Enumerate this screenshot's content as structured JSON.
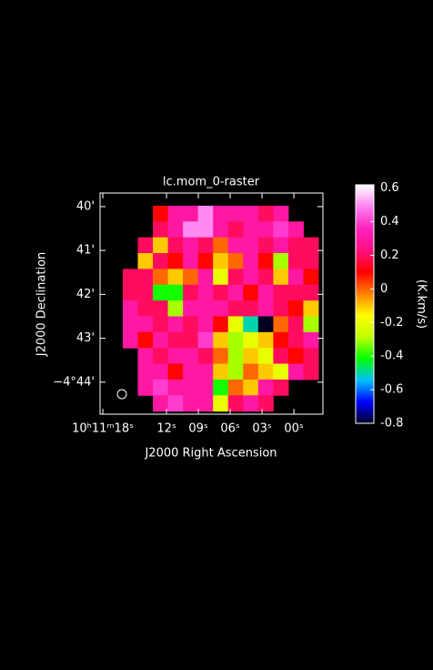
{
  "chart_data": {
    "type": "raster",
    "title": "lc.mom_0-raster",
    "xlabel": "J2000 Right Ascension",
    "ylabel": "J2000 Declination",
    "colorbar_label": "(K.km/s)",
    "xlim": [
      18.26,
      -2.74
    ],
    "ylim": [
      39.69,
      44.73
    ],
    "xticks": [
      {
        "value": 18,
        "label": "10ʰ11ᵐ18ˢ"
      },
      {
        "value": 12,
        "label": "12ˢ"
      },
      {
        "value": 9,
        "label": "09ˢ"
      },
      {
        "value": 6,
        "label": "06ˢ"
      },
      {
        "value": 3,
        "label": "03ˢ"
      },
      {
        "value": 0,
        "label": "00ˢ"
      }
    ],
    "yticks": [
      {
        "value": 40,
        "label": "40'"
      },
      {
        "value": 41,
        "label": "41'"
      },
      {
        "value": 42,
        "label": "42'"
      },
      {
        "value": 43,
        "label": "43'"
      },
      {
        "value": 44,
        "label": "−4°44'"
      }
    ],
    "extent": [
      16.12,
      -2.31,
      39.98,
      44.66
    ],
    "clim": [
      -0.8,
      0.62
    ],
    "cticks": [
      0.6,
      0.4,
      0.2,
      0,
      -0.2,
      -0.4,
      -0.6,
      -0.8
    ],
    "colormap": [
      "#000020",
      "#0000ff",
      "#00c0ff",
      "#00ff00",
      "#c0ff00",
      "#ffff00",
      "#ff8000",
      "#ff0000",
      "#ff1080",
      "#ff20c0",
      "#ff80f0",
      "#ffffff"
    ],
    "z": [
      [
        null,
        null,
        0.1,
        0.3,
        0.3,
        0.5,
        0.3,
        0.3,
        0.3,
        0.2,
        0.3,
        null,
        null
      ],
      [
        null,
        null,
        0.2,
        0.3,
        0.5,
        0.5,
        0.3,
        0.2,
        0.3,
        0.3,
        0.4,
        0.3,
        null
      ],
      [
        null,
        0.2,
        -0.1,
        0.2,
        0.3,
        0.2,
        0.0,
        0.3,
        0.3,
        0.2,
        0.3,
        0.2,
        0.2
      ],
      [
        null,
        -0.1,
        0.2,
        0.1,
        0.3,
        0.1,
        -0.1,
        0.0,
        0.3,
        0.1,
        -0.3,
        0.2,
        0.2
      ],
      [
        0.2,
        0.2,
        0.0,
        -0.1,
        0.0,
        0.3,
        -0.2,
        0.2,
        0.3,
        0.2,
        -0.1,
        0.3,
        0.1
      ],
      [
        0.2,
        0.2,
        -0.4,
        -0.4,
        0.2,
        0.3,
        0.2,
        0.3,
        0.1,
        0.3,
        0.2,
        0.2,
        0.2
      ],
      [
        0.3,
        0.2,
        0.2,
        -0.3,
        0.3,
        0.3,
        0.3,
        0.2,
        0.2,
        0.3,
        0.2,
        0.1,
        -0.1
      ],
      [
        0.3,
        0.3,
        0.2,
        0.3,
        0.2,
        0.3,
        0.1,
        -0.2,
        -0.5,
        -0.8,
        0.0,
        0.2,
        -0.3
      ],
      [
        0.3,
        0.1,
        0.3,
        0.2,
        0.2,
        0.4,
        -0.1,
        -0.3,
        -0.2,
        -0.1,
        0.1,
        0.2,
        0.3
      ],
      [
        null,
        0.3,
        0.2,
        0.3,
        0.3,
        0.2,
        0.0,
        -0.3,
        -0.1,
        -0.2,
        0.2,
        0.1,
        0.2
      ],
      [
        null,
        0.3,
        0.3,
        0.1,
        0.3,
        0.3,
        -0.1,
        -0.3,
        0.0,
        -0.1,
        -0.2,
        0.3,
        0.2
      ],
      [
        null,
        0.3,
        0.4,
        0.3,
        0.3,
        0.3,
        -0.4,
        0.0,
        -0.1,
        0.3,
        0.2,
        null,
        null
      ],
      [
        null,
        null,
        0.3,
        0.4,
        0.3,
        0.3,
        -0.2,
        0.2,
        0.3,
        0.2,
        null,
        null,
        null
      ]
    ]
  }
}
